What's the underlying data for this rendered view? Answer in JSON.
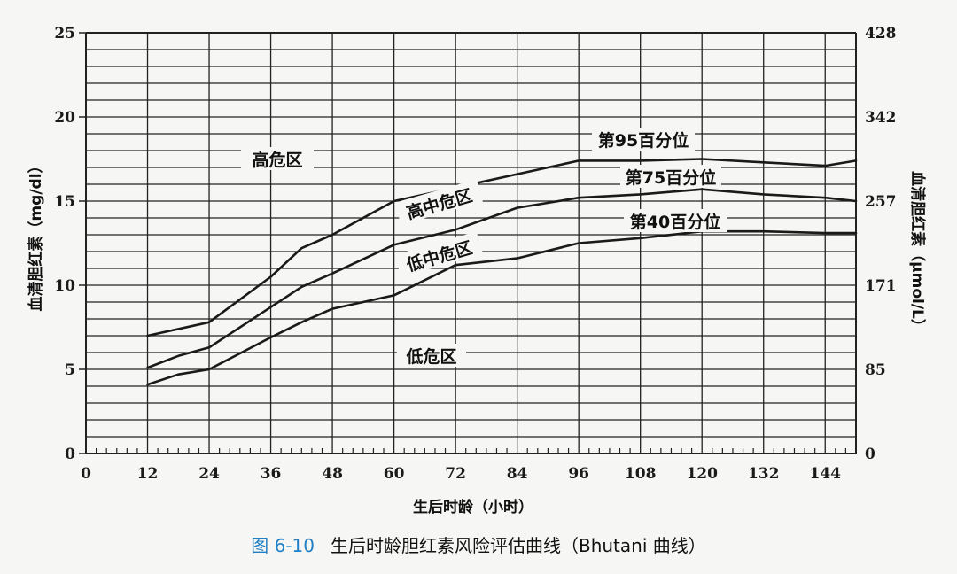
{
  "chart_data": {
    "type": "line",
    "xlabel": "生后时龄（小时）",
    "ylabel_left": "血清胆红素（mg/dl）",
    "ylabel_right": "血清胆红素（μmol/L）",
    "xlim": [
      0,
      150
    ],
    "ylim": [
      0,
      25
    ],
    "x_ticks": [
      "0",
      "12",
      "24",
      "36",
      "48",
      "60",
      "72",
      "84",
      "96",
      "108",
      "120",
      "132",
      "144"
    ],
    "y_ticks_left": [
      "0",
      "5",
      "10",
      "15",
      "20",
      "25"
    ],
    "y_ticks_right": [
      "0",
      "85",
      "171",
      "257",
      "342",
      "428"
    ],
    "grid": true,
    "series": [
      {
        "name": "第95百分位",
        "points": [
          [
            12,
            7.0
          ],
          [
            24,
            7.8
          ],
          [
            36,
            10.5
          ],
          [
            42,
            12.2
          ],
          [
            48,
            13.0
          ],
          [
            60,
            15.0
          ],
          [
            72,
            15.8
          ],
          [
            84,
            16.6
          ],
          [
            96,
            17.4
          ],
          [
            108,
            17.4
          ],
          [
            120,
            17.5
          ],
          [
            132,
            17.3
          ],
          [
            144,
            17.1
          ],
          [
            150,
            17.4
          ]
        ]
      },
      {
        "name": "第75百分位",
        "points": [
          [
            12,
            5.1
          ],
          [
            18,
            5.8
          ],
          [
            24,
            6.3
          ],
          [
            36,
            8.7
          ],
          [
            42,
            9.9
          ],
          [
            48,
            10.7
          ],
          [
            60,
            12.4
          ],
          [
            72,
            13.3
          ],
          [
            84,
            14.6
          ],
          [
            96,
            15.2
          ],
          [
            108,
            15.4
          ],
          [
            120,
            15.7
          ],
          [
            132,
            15.4
          ],
          [
            144,
            15.2
          ],
          [
            150,
            15.0
          ]
        ]
      },
      {
        "name": "第40百分位",
        "points": [
          [
            12,
            4.1
          ],
          [
            18,
            4.7
          ],
          [
            24,
            5.0
          ],
          [
            36,
            6.9
          ],
          [
            42,
            7.8
          ],
          [
            48,
            8.6
          ],
          [
            60,
            9.4
          ],
          [
            72,
            11.2
          ],
          [
            84,
            11.6
          ],
          [
            96,
            12.5
          ],
          [
            108,
            12.8
          ],
          [
            120,
            13.2
          ],
          [
            132,
            13.2
          ],
          [
            144,
            13.1
          ],
          [
            150,
            13.1
          ]
        ]
      }
    ],
    "zones": [
      "高危区",
      "高中危区",
      "低中危区",
      "低危区"
    ]
  },
  "caption": {
    "figure_no": "图 6-10",
    "text": "生后时龄胆红素风险评估曲线（Bhutani 曲线）"
  }
}
